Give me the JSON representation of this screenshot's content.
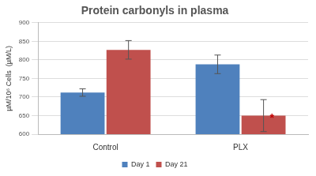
{
  "chart_data": {
    "type": "bar",
    "title": "Protein carbonyls in plasma",
    "y_label": "µM/10⁶ Cells  (µM/L)",
    "categories": [
      "Control",
      "PLX"
    ],
    "series": [
      {
        "name": "Day 1",
        "color": "#4f81bd",
        "values": [
          712,
          788
        ],
        "errors": [
          10,
          25
        ]
      },
      {
        "name": "Day 21",
        "color": "#c0504d",
        "values": [
          827,
          650
        ],
        "errors": [
          25,
          43
        ]
      }
    ],
    "annotations": [
      {
        "text": "*",
        "category": "PLX",
        "series": "Day 21"
      }
    ],
    "ylim": [
      600,
      900
    ],
    "yticks": [
      600,
      650,
      700,
      750,
      800,
      850,
      900
    ],
    "grid": true,
    "legend": "bottom",
    "data_labels": true
  }
}
